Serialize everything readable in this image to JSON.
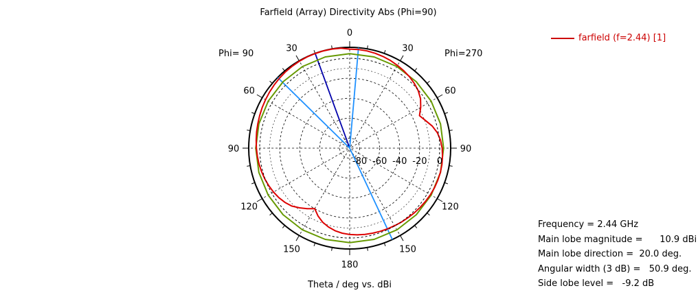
{
  "chart_data": {
    "type": "polar",
    "title": "Farfield (Array) Directivity Abs (Phi=90)",
    "xlabel": "Theta / deg vs. dBi",
    "left_half_label": "Phi= 90",
    "right_half_label": "Phi=270",
    "angle_labels": [
      "0",
      "30",
      "60",
      "90",
      "120",
      "150",
      "180",
      "150",
      "120",
      "90",
      "60",
      "30"
    ],
    "angle_label_thetas": [
      0,
      30,
      60,
      90,
      120,
      150,
      180,
      210,
      240,
      270,
      300,
      330
    ],
    "radial_ticks": [
      "-80",
      "-60",
      "-40",
      "-20",
      "0"
    ],
    "radial_tick_values": [
      -80,
      -60,
      -40,
      -20,
      0
    ],
    "rlim": [
      -90,
      11
    ],
    "grid": true,
    "legend_position": "top-right",
    "series": [
      {
        "name": "farfield (f=2.44) [1]",
        "color": "#dd0000",
        "theta": [
          0,
          5,
          10,
          15,
          20,
          25,
          30,
          35,
          40,
          45,
          50,
          55,
          60,
          65,
          70,
          75,
          80,
          85,
          90,
          95,
          100,
          105,
          110,
          115,
          120,
          125,
          130,
          135,
          140,
          145,
          150,
          155,
          160,
          165,
          170,
          175,
          180,
          185,
          190,
          195,
          200,
          205,
          210,
          215,
          220,
          225,
          230,
          235,
          240,
          245,
          250,
          255,
          260,
          265,
          270,
          275,
          280,
          285,
          290,
          295,
          300,
          305,
          310,
          315,
          320,
          325,
          330,
          335,
          340,
          345,
          350,
          355
        ],
        "values": [
          9.2,
          10.5,
          10.8,
          10.9,
          10.9,
          10.8,
          10.6,
          10.2,
          9.8,
          9.2,
          8.6,
          7.9,
          7.2,
          6.5,
          5.8,
          5.1,
          4.5,
          3.9,
          3.3,
          2.7,
          2.0,
          1.2,
          0.3,
          -0.8,
          -2.0,
          -3.5,
          -5.5,
          -8.0,
          -12.0,
          -16.0,
          -20.0,
          -15.0,
          -11.0,
          -8.2,
          -6.0,
          -4.5,
          -3.5,
          -2.8,
          -2.3,
          -1.8,
          -1.3,
          -0.8,
          -0.3,
          0.3,
          0.9,
          1.5,
          2.1,
          2.7,
          3.2,
          3.6,
          3.8,
          3.9,
          3.7,
          3.2,
          2.5,
          1.2,
          -1.0,
          -4.5,
          -9.2,
          -13.0,
          -8.0,
          -3.5,
          -0.5,
          1.5,
          3.2,
          4.5,
          5.7,
          6.8,
          7.7,
          8.4,
          8.9,
          9.2
        ]
      },
      {
        "name": "",
        "color": "#669900",
        "theta": [
          0,
          15,
          30,
          45,
          60,
          75,
          90,
          105,
          120,
          135,
          150,
          165,
          180,
          195,
          210,
          225,
          240,
          255,
          270,
          285,
          300,
          315,
          330,
          345
        ],
        "values": [
          4.6,
          4.6,
          4.4,
          4.2,
          4.1,
          4.0,
          3.9,
          4.0,
          4.1,
          4.3,
          4.5,
          4.6,
          4.7,
          4.6,
          4.5,
          4.3,
          4.1,
          4.0,
          3.9,
          4.0,
          4.1,
          4.2,
          4.4,
          4.6
        ]
      }
    ],
    "indicator_lines": [
      {
        "theta": 20,
        "color": "#0000aa"
      },
      {
        "theta": 355,
        "color": "#1e90ff"
      },
      {
        "theta": 45.5,
        "color": "#1e90ff"
      },
      {
        "theta": 205,
        "color": "#1e90ff"
      }
    ],
    "reference_circle_value": 0
  },
  "legend": {
    "label": "farfield (f=2.44) [1]"
  },
  "info": {
    "frequency": "Frequency = 2.44 GHz",
    "main_lobe_magnitude": "Main lobe magnitude =      10.9 dBi",
    "main_lobe_direction": "Main lobe direction =  20.0 deg.",
    "angular_width": "Angular width (3 dB) =   50.9 deg.",
    "side_lobe_level": "Side lobe level =   -9.2 dB"
  }
}
